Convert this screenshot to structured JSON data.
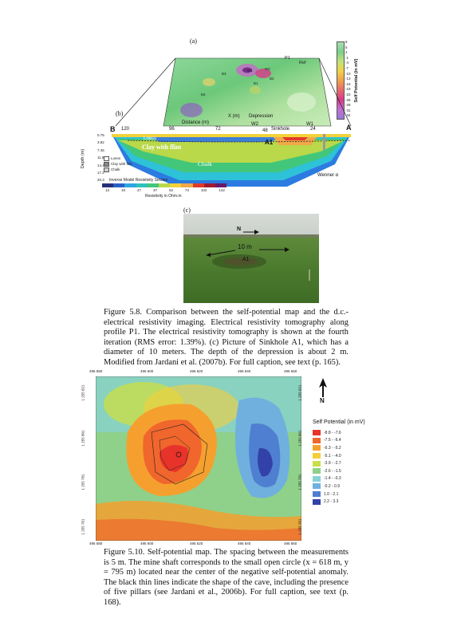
{
  "fig58": {
    "panel_a": "(a)",
    "panel_b": "(b)",
    "panel_c": "(c)",
    "sp_colorbar_title": "Self Potential (in mV)",
    "sp_colorbar_ticks": [
      "8",
      "5",
      "2",
      "-1",
      "-4",
      "-7",
      "-10",
      "-13",
      "-16",
      "-19",
      "-22",
      "-25",
      "-28",
      "-31",
      "-34"
    ],
    "map_labels": [
      "P1",
      "Ref",
      "B3",
      "W1",
      "W2",
      "B1",
      "B2",
      "B4"
    ],
    "x_axis_label": "X (m)",
    "depression_label": "Depression",
    "distance_label": "Distance (m)",
    "section_end_left": "B",
    "section_end_right": "A",
    "distance_ticks": [
      "120",
      "96",
      "72",
      "48",
      "24"
    ],
    "well_labels": [
      "W2",
      "Sinkhole",
      "W1"
    ],
    "depth_label": "Depth (m)",
    "depth_ticks": [
      "0.75",
      "3.82",
      "7.46",
      "11.9",
      "14.4",
      "17.2",
      "20.3"
    ],
    "cave_label": "A1",
    "layers": [
      "Loess",
      "Clay with flint",
      "Chalk"
    ],
    "legend": [
      {
        "name": "Loess",
        "color": "#ffffff"
      },
      {
        "name": "Clay with flint",
        "color": "#888888"
      },
      {
        "name": "Chalk",
        "color": "#d0d0d0"
      }
    ],
    "section_title": "Inverse Model Resistivity Section",
    "resistivity_ticks": [
      "13",
      "19",
      "27",
      "37",
      "52",
      "73",
      "102",
      "142"
    ],
    "resistivity_unit": "Resistivity in Ohm.m",
    "array_label": "Wenner α",
    "photo_north": "N",
    "photo_scale": "10 m",
    "photo_feature": "A1",
    "caption_label": "Figure 5.8.",
    "caption_text": "Comparison between the self-potential map and the d.c.-electrical resistivity imaging. Electrical resistivity tomography along profile P1. The electrical resistivity tomography is shown at the fourth iteration (RMS error: 1.39%). (c) Picture of Sinkhole A1, which has a diameter of 10 meters. The depth of the depression is about 2 m. Modified from Jardani et al. (2007b). For full caption, see text (p. 165)."
  },
  "fig510": {
    "x_ticks": [
      "495 580",
      "495 600",
      "495 620",
      "495 640",
      "495 660"
    ],
    "y_ticks": [
      "1 255 821",
      "1 255 801",
      "1 255 781",
      "1 255 761"
    ],
    "north": "N",
    "legend_title": "Self Potential (in mV)",
    "legend_items": [
      {
        "label": "-8.8 - -7.6",
        "color": "#e8332a"
      },
      {
        "label": "-7.5 - -6.4",
        "color": "#f0662c"
      },
      {
        "label": "-6.3 - -5.2",
        "color": "#f5a02e"
      },
      {
        "label": "-5.1 - -4.0",
        "color": "#f5cf3a"
      },
      {
        "label": "-3.9 - -2.7",
        "color": "#c9df4a"
      },
      {
        "label": "-2.6 - -1.5",
        "color": "#8fd18a"
      },
      {
        "label": "-1.4 - -0.3",
        "color": "#86d3d6"
      },
      {
        "label": "-0.2 - 0.9",
        "color": "#6fb0df"
      },
      {
        "label": "1.0 - 2.1",
        "color": "#4f7fd0"
      },
      {
        "label": "2.2 - 3.3",
        "color": "#3242a8"
      }
    ],
    "caption_label": "Figure 5.10.",
    "caption_text": "Self-potential map. The spacing between the measurements is 5 m. The mine shaft corresponds to the small open circle (x = 618 m, y = 795 m) located near the center of the negative self-potential anomaly. The black thin lines indicate the shape of the cave, including the presence of five pillars (see Jardani et al., 2006b). For full caption, see text (p. 168)."
  }
}
